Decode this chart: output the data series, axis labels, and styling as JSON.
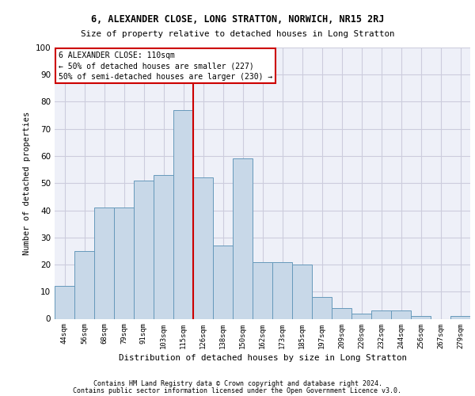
{
  "title1": "6, ALEXANDER CLOSE, LONG STRATTON, NORWICH, NR15 2RJ",
  "title2": "Size of property relative to detached houses in Long Stratton",
  "xlabel": "Distribution of detached houses by size in Long Stratton",
  "ylabel": "Number of detached properties",
  "bar_labels": [
    "44sqm",
    "56sqm",
    "68sqm",
    "79sqm",
    "91sqm",
    "103sqm",
    "115sqm",
    "126sqm",
    "138sqm",
    "150sqm",
    "162sqm",
    "173sqm",
    "185sqm",
    "197sqm",
    "209sqm",
    "220sqm",
    "232sqm",
    "244sqm",
    "256sqm",
    "267sqm",
    "279sqm"
  ],
  "bar_values": [
    12,
    25,
    41,
    41,
    51,
    53,
    77,
    52,
    27,
    59,
    21,
    21,
    20,
    8,
    4,
    2,
    3,
    3,
    1,
    0,
    1
  ],
  "bar_color": "#c8d8e8",
  "bar_edge_color": "#6699bb",
  "vline_x_idx": 6,
  "vline_color": "#cc0000",
  "annotation_lines": [
    "6 ALEXANDER CLOSE: 110sqm",
    "← 50% of detached houses are smaller (227)",
    "50% of semi-detached houses are larger (230) →"
  ],
  "annotation_box_color": "#ffffff",
  "annotation_box_edge": "#cc0000",
  "ylim": [
    0,
    100
  ],
  "yticks": [
    0,
    10,
    20,
    30,
    40,
    50,
    60,
    70,
    80,
    90,
    100
  ],
  "grid_color": "#ccccdd",
  "background_color": "#eef0f8",
  "footer1": "Contains HM Land Registry data © Crown copyright and database right 2024.",
  "footer2": "Contains public sector information licensed under the Open Government Licence v3.0."
}
